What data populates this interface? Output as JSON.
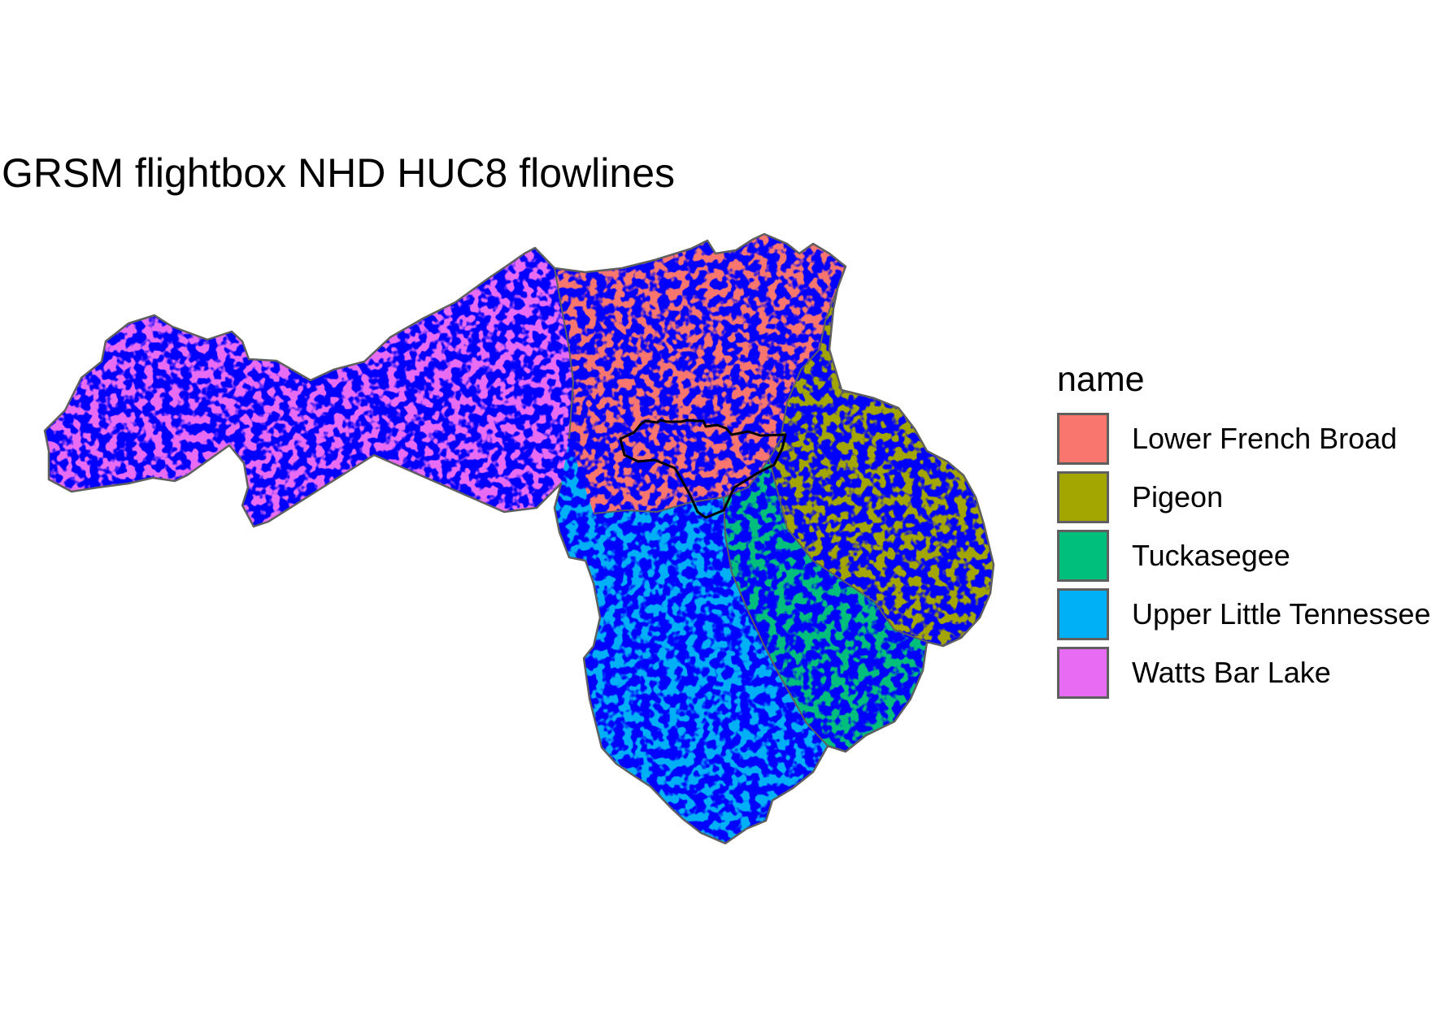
{
  "title": "GRSM flightbox NHD HUC8 flowlines",
  "legend": {
    "title": "name",
    "items": [
      {
        "label": "Lower French Broad",
        "color": "#F8766D"
      },
      {
        "label": "Pigeon",
        "color": "#A3A500"
      },
      {
        "label": "Tuckasegee",
        "color": "#00BF7D"
      },
      {
        "label": "Upper Little Tennessee",
        "color": "#00B0F6"
      },
      {
        "label": "Watts Bar Lake",
        "color": "#E76BF3"
      }
    ]
  },
  "map": {
    "flowline_color": "#0000FF",
    "boundary_color": "#5f5f5f",
    "flightbox_color": "#000000"
  }
}
